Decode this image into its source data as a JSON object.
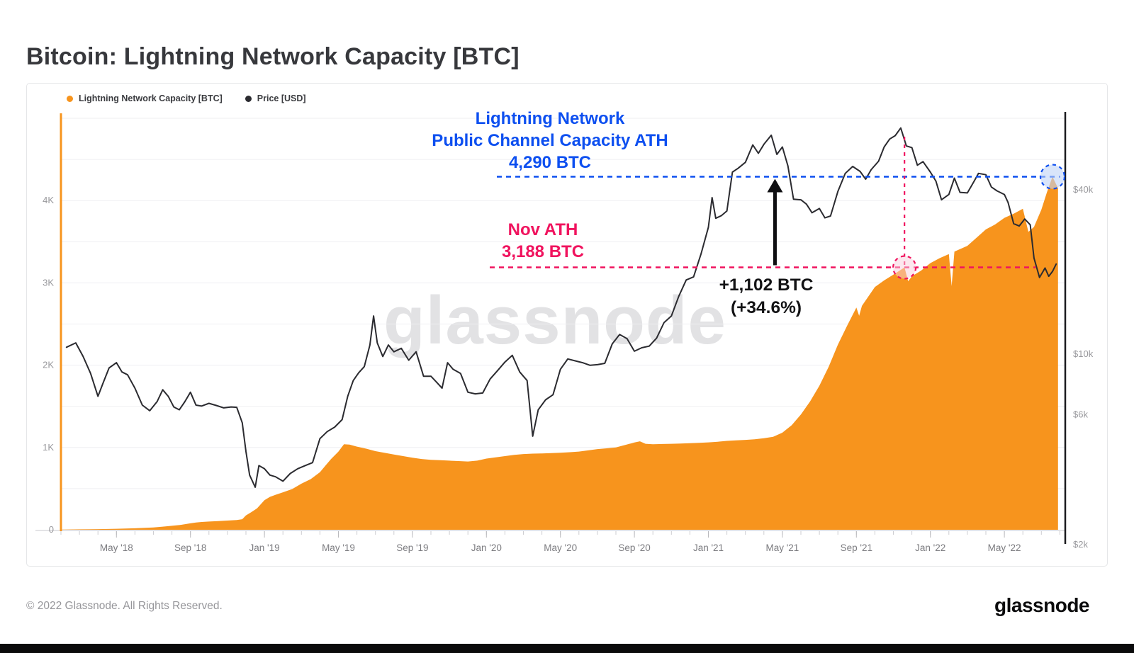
{
  "title": "Bitcoin: Lightning Network Capacity [BTC]",
  "watermark": "glassnode",
  "footer": {
    "copyright": "© 2022 Glassnode. All Rights Reserved.",
    "logo": "glassnode"
  },
  "chart_data": {
    "type": "area",
    "title": "Bitcoin: Lightning Network Capacity [BTC]",
    "legend_position": "top-left",
    "grid": true,
    "series": [
      {
        "name": "Lightning Network Capacity [BTC]",
        "type": "area",
        "axis": "left",
        "color": "#F7941D",
        "points": [
          [
            0,
            2
          ],
          [
            1,
            5
          ],
          [
            2,
            8
          ],
          [
            3,
            12
          ],
          [
            4,
            18
          ],
          [
            5,
            28
          ],
          [
            5.5,
            38
          ],
          [
            6,
            48
          ],
          [
            6.5,
            60
          ],
          [
            7,
            78
          ],
          [
            7.3,
            88
          ],
          [
            7.6,
            95
          ],
          [
            8,
            100
          ],
          [
            8.5,
            106
          ],
          [
            9,
            112
          ],
          [
            9.5,
            118
          ],
          [
            9.8,
            128
          ],
          [
            10,
            175
          ],
          [
            10.3,
            215
          ],
          [
            10.6,
            260
          ],
          [
            11,
            360
          ],
          [
            11.3,
            400
          ],
          [
            11.6,
            425
          ],
          [
            12,
            455
          ],
          [
            12.5,
            495
          ],
          [
            13,
            560
          ],
          [
            13.5,
            615
          ],
          [
            14,
            700
          ],
          [
            14.3,
            780
          ],
          [
            14.6,
            860
          ],
          [
            15,
            950
          ],
          [
            15.3,
            1040
          ],
          [
            15.6,
            1035
          ],
          [
            16,
            1010
          ],
          [
            16.5,
            985
          ],
          [
            17,
            955
          ],
          [
            17.5,
            935
          ],
          [
            18,
            915
          ],
          [
            18.5,
            895
          ],
          [
            19,
            875
          ],
          [
            19.5,
            860
          ],
          [
            20,
            850
          ],
          [
            20.5,
            845
          ],
          [
            21,
            840
          ],
          [
            21.5,
            835
          ],
          [
            22,
            830
          ],
          [
            22.5,
            840
          ],
          [
            23,
            865
          ],
          [
            23.5,
            880
          ],
          [
            24,
            895
          ],
          [
            24.5,
            910
          ],
          [
            25,
            920
          ],
          [
            25.5,
            925
          ],
          [
            26,
            928
          ],
          [
            26.5,
            932
          ],
          [
            27,
            936
          ],
          [
            27.5,
            942
          ],
          [
            28,
            950
          ],
          [
            28.5,
            965
          ],
          [
            29,
            980
          ],
          [
            29.5,
            990
          ],
          [
            30,
            1000
          ],
          [
            30.5,
            1030
          ],
          [
            31,
            1060
          ],
          [
            31.3,
            1075
          ],
          [
            31.6,
            1045
          ],
          [
            32,
            1040
          ],
          [
            32.5,
            1042
          ],
          [
            33,
            1045
          ],
          [
            33.5,
            1048
          ],
          [
            34,
            1052
          ],
          [
            34.5,
            1056
          ],
          [
            35,
            1062
          ],
          [
            35.5,
            1070
          ],
          [
            36,
            1080
          ],
          [
            36.5,
            1086
          ],
          [
            37,
            1092
          ],
          [
            37.5,
            1100
          ],
          [
            38,
            1112
          ],
          [
            38.5,
            1130
          ],
          [
            39,
            1180
          ],
          [
            39.5,
            1270
          ],
          [
            40,
            1400
          ],
          [
            40.5,
            1560
          ],
          [
            41,
            1750
          ],
          [
            41.5,
            1980
          ],
          [
            42,
            2250
          ],
          [
            42.5,
            2480
          ],
          [
            43,
            2700
          ],
          [
            43.15,
            2600
          ],
          [
            43.3,
            2720
          ],
          [
            44,
            2950
          ],
          [
            44.5,
            3030
          ],
          [
            45,
            3100
          ],
          [
            45.6,
            3188
          ],
          [
            45.8,
            3020
          ],
          [
            46,
            3080
          ],
          [
            46.5,
            3150
          ],
          [
            47,
            3240
          ],
          [
            47.5,
            3300
          ],
          [
            48,
            3350
          ],
          [
            48.15,
            2960
          ],
          [
            48.3,
            3380
          ],
          [
            49,
            3450
          ],
          [
            49.5,
            3550
          ],
          [
            50,
            3650
          ],
          [
            50.5,
            3710
          ],
          [
            51,
            3790
          ],
          [
            51.5,
            3840
          ],
          [
            52,
            3900
          ],
          [
            52.3,
            3620
          ],
          [
            52.6,
            3680
          ],
          [
            53,
            3890
          ],
          [
            53.3,
            4100
          ],
          [
            53.6,
            4290
          ],
          [
            53.9,
            4150
          ]
        ]
      },
      {
        "name": "Price [USD]",
        "type": "line",
        "axis": "right",
        "color": "#2B2B30",
        "points": [
          [
            0.3,
            10600
          ],
          [
            0.8,
            11000
          ],
          [
            1.2,
            9800
          ],
          [
            1.6,
            8500
          ],
          [
            2,
            7000
          ],
          [
            2.3,
            7900
          ],
          [
            2.6,
            8900
          ],
          [
            3,
            9300
          ],
          [
            3.3,
            8600
          ],
          [
            3.6,
            8400
          ],
          [
            4,
            7500
          ],
          [
            4.4,
            6500
          ],
          [
            4.8,
            6200
          ],
          [
            5.2,
            6700
          ],
          [
            5.5,
            7400
          ],
          [
            5.8,
            7000
          ],
          [
            6.1,
            6400
          ],
          [
            6.4,
            6250
          ],
          [
            6.7,
            6700
          ],
          [
            7,
            7250
          ],
          [
            7.3,
            6500
          ],
          [
            7.6,
            6450
          ],
          [
            8,
            6600
          ],
          [
            8.4,
            6480
          ],
          [
            8.8,
            6350
          ],
          [
            9.2,
            6400
          ],
          [
            9.5,
            6380
          ],
          [
            9.8,
            5600
          ],
          [
            10,
            4400
          ],
          [
            10.2,
            3600
          ],
          [
            10.5,
            3250
          ],
          [
            10.7,
            3900
          ],
          [
            11,
            3800
          ],
          [
            11.3,
            3600
          ],
          [
            11.6,
            3550
          ],
          [
            12,
            3420
          ],
          [
            12.4,
            3650
          ],
          [
            12.8,
            3800
          ],
          [
            13.2,
            3900
          ],
          [
            13.6,
            4000
          ],
          [
            14,
            4900
          ],
          [
            14.4,
            5200
          ],
          [
            14.8,
            5400
          ],
          [
            15.2,
            5750
          ],
          [
            15.5,
            7000
          ],
          [
            15.8,
            8000
          ],
          [
            16.1,
            8550
          ],
          [
            16.4,
            9000
          ],
          [
            16.7,
            10800
          ],
          [
            16.9,
            13800
          ],
          [
            17.1,
            11000
          ],
          [
            17.4,
            9800
          ],
          [
            17.7,
            10800
          ],
          [
            18,
            10200
          ],
          [
            18.4,
            10500
          ],
          [
            18.8,
            9500
          ],
          [
            19.2,
            10200
          ],
          [
            19.6,
            8300
          ],
          [
            20,
            8300
          ],
          [
            20.3,
            7900
          ],
          [
            20.6,
            7500
          ],
          [
            20.9,
            9300
          ],
          [
            21.2,
            8800
          ],
          [
            21.6,
            8500
          ],
          [
            22,
            7250
          ],
          [
            22.4,
            7150
          ],
          [
            22.8,
            7200
          ],
          [
            23.2,
            8100
          ],
          [
            23.6,
            8700
          ],
          [
            24,
            9350
          ],
          [
            24.4,
            9900
          ],
          [
            24.8,
            8600
          ],
          [
            25.2,
            8000
          ],
          [
            25.5,
            5000
          ],
          [
            25.8,
            6250
          ],
          [
            26.2,
            6800
          ],
          [
            26.6,
            7100
          ],
          [
            27,
            8800
          ],
          [
            27.4,
            9600
          ],
          [
            27.8,
            9450
          ],
          [
            28.2,
            9300
          ],
          [
            28.6,
            9100
          ],
          [
            29,
            9150
          ],
          [
            29.4,
            9250
          ],
          [
            29.8,
            10900
          ],
          [
            30.2,
            11800
          ],
          [
            30.6,
            11400
          ],
          [
            31,
            10250
          ],
          [
            31.4,
            10550
          ],
          [
            31.8,
            10700
          ],
          [
            32.2,
            11450
          ],
          [
            32.6,
            13050
          ],
          [
            33,
            13800
          ],
          [
            33.4,
            16300
          ],
          [
            33.8,
            18700
          ],
          [
            34.2,
            19200
          ],
          [
            34.6,
            23300
          ],
          [
            35,
            29200
          ],
          [
            35.2,
            37500
          ],
          [
            35.4,
            31500
          ],
          [
            35.7,
            32200
          ],
          [
            36,
            33500
          ],
          [
            36.3,
            46500
          ],
          [
            36.6,
            48000
          ],
          [
            37,
            50500
          ],
          [
            37.4,
            58500
          ],
          [
            37.7,
            54500
          ],
          [
            38,
            58800
          ],
          [
            38.4,
            63500
          ],
          [
            38.7,
            54000
          ],
          [
            39,
            57500
          ],
          [
            39.3,
            49000
          ],
          [
            39.6,
            37000
          ],
          [
            40,
            36800
          ],
          [
            40.3,
            35500
          ],
          [
            40.6,
            33000
          ],
          [
            41,
            34200
          ],
          [
            41.3,
            31600
          ],
          [
            41.6,
            32100
          ],
          [
            42,
            39500
          ],
          [
            42.4,
            46000
          ],
          [
            42.8,
            48800
          ],
          [
            43.2,
            46800
          ],
          [
            43.5,
            43800
          ],
          [
            43.8,
            47500
          ],
          [
            44.2,
            51000
          ],
          [
            44.5,
            57500
          ],
          [
            44.8,
            61500
          ],
          [
            45.1,
            63300
          ],
          [
            45.4,
            67500
          ],
          [
            45.7,
            58000
          ],
          [
            46,
            57200
          ],
          [
            46.3,
            49300
          ],
          [
            46.6,
            50800
          ],
          [
            47,
            46500
          ],
          [
            47.3,
            43100
          ],
          [
            47.6,
            36800
          ],
          [
            48,
            38500
          ],
          [
            48.3,
            44200
          ],
          [
            48.6,
            39200
          ],
          [
            49,
            39000
          ],
          [
            49.3,
            42300
          ],
          [
            49.6,
            46000
          ],
          [
            50,
            45500
          ],
          [
            50.3,
            41000
          ],
          [
            50.6,
            39700
          ],
          [
            51,
            38500
          ],
          [
            51.2,
            36000
          ],
          [
            51.5,
            30100
          ],
          [
            51.8,
            29500
          ],
          [
            52.1,
            31300
          ],
          [
            52.4,
            29800
          ],
          [
            52.6,
            22500
          ],
          [
            52.9,
            19100
          ],
          [
            53.2,
            20700
          ],
          [
            53.4,
            19300
          ],
          [
            53.6,
            20100
          ],
          [
            53.8,
            21400
          ]
        ]
      }
    ],
    "x_axis": {
      "unit": "months from Feb 2018",
      "range": [
        0,
        54.3
      ],
      "ticks": [
        {
          "m": 3,
          "label": "May '18"
        },
        {
          "m": 7,
          "label": "Sep '18"
        },
        {
          "m": 11,
          "label": "Jan '19"
        },
        {
          "m": 15,
          "label": "May '19"
        },
        {
          "m": 19,
          "label": "Sep '19"
        },
        {
          "m": 23,
          "label": "Jan '20"
        },
        {
          "m": 27,
          "label": "May '20"
        },
        {
          "m": 31,
          "label": "Sep '20"
        },
        {
          "m": 35,
          "label": "Jan '21"
        },
        {
          "m": 39,
          "label": "May '21"
        },
        {
          "m": 43,
          "label": "Sep '21"
        },
        {
          "m": 47,
          "label": "Jan '22"
        },
        {
          "m": 51,
          "label": "May '22"
        }
      ]
    },
    "y_left": {
      "scale": "linear",
      "range": [
        0,
        5000
      ],
      "ticks": [
        {
          "v": 0,
          "label": "0"
        },
        {
          "v": 1000,
          "label": "1K"
        },
        {
          "v": 2000,
          "label": "2K"
        },
        {
          "v": 3000,
          "label": "3K"
        },
        {
          "v": 4000,
          "label": "4K"
        }
      ]
    },
    "y_right": {
      "scale": "log",
      "ticks": [
        {
          "v": 2000,
          "label": "$2k"
        },
        {
          "v": 6000,
          "label": "$6k"
        },
        {
          "v": 10000,
          "label": "$10k"
        },
        {
          "v": 40000,
          "label": "$40k"
        }
      ]
    },
    "annotations": {
      "ath_blue": {
        "lines": [
          "Lightning Network",
          "Public Channel Capacity ATH",
          "4,290 BTC"
        ],
        "value": 4290,
        "color": "#0D4FF0"
      },
      "nov_ath": {
        "lines": [
          "Nov ATH",
          "3,188 BTC"
        ],
        "value": 3188,
        "color": "#F0135E"
      },
      "delta": {
        "lines": [
          "+1,102 BTC",
          "(+34.6%)"
        ],
        "color": "#121214"
      },
      "vline_month": 45.6,
      "arrow_month": 38.6,
      "pink_circle": {
        "month": 45.6,
        "value": 3188
      },
      "blue_circle": {
        "month": 53.6,
        "value": 4290
      }
    }
  }
}
